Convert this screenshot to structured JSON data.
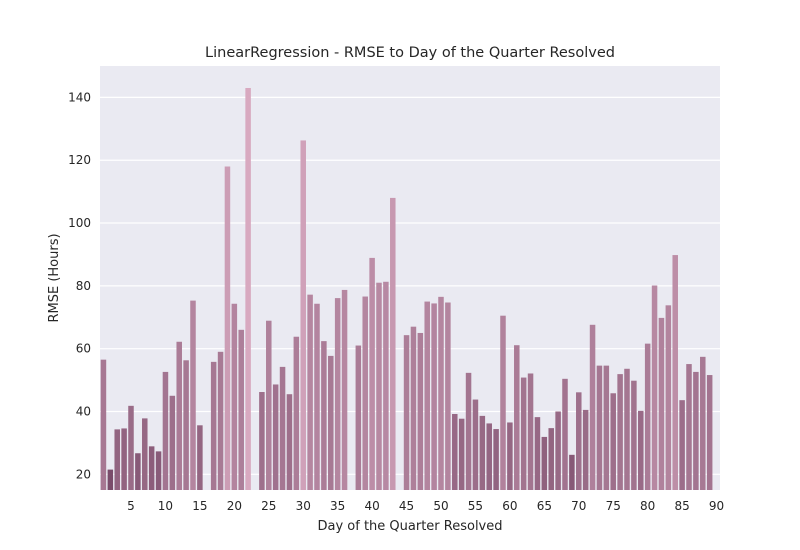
{
  "chart_data": {
    "type": "bar",
    "title": "LinearRegression - RMSE to Day of the Quarter Resolved",
    "xlabel": "Day of the Quarter Resolved",
    "ylabel": "RMSE (Hours)",
    "ylim": [
      15,
      150
    ],
    "x_ticks": [
      5,
      10,
      15,
      20,
      25,
      30,
      35,
      40,
      45,
      50,
      55,
      60,
      65,
      70,
      75,
      80,
      85,
      90
    ],
    "y_ticks": [
      20,
      40,
      60,
      80,
      100,
      120,
      140
    ],
    "categories": [
      1,
      2,
      3,
      4,
      5,
      6,
      7,
      8,
      9,
      10,
      11,
      12,
      13,
      14,
      15,
      16,
      17,
      18,
      19,
      20,
      21,
      22,
      23,
      24,
      25,
      26,
      27,
      28,
      29,
      30,
      31,
      32,
      33,
      34,
      35,
      36,
      37,
      38,
      39,
      40,
      41,
      42,
      43,
      44,
      45,
      46,
      47,
      48,
      49,
      50,
      51,
      52,
      53,
      54,
      55,
      56,
      57,
      58,
      59,
      60,
      61,
      62,
      63,
      64,
      65,
      66,
      67,
      68,
      69,
      70,
      71,
      72,
      73,
      74,
      75,
      76,
      77,
      78,
      79,
      80,
      81,
      82,
      83,
      84,
      85,
      86,
      87,
      88,
      89,
      90
    ],
    "values": [
      56.5,
      21.5,
      34.3,
      34.6,
      41.8,
      26.7,
      37.8,
      28.9,
      27.3,
      52.6,
      45.0,
      62.2,
      56.3,
      75.3,
      35.6,
      null,
      55.8,
      59.0,
      118.0,
      74.3,
      66.0,
      143.0,
      null,
      46.2,
      68.9,
      48.6,
      54.2,
      45.5,
      63.8,
      126.3,
      77.2,
      74.3,
      62.4,
      57.7,
      76.1,
      78.7,
      null,
      61.0,
      76.6,
      88.9,
      81.0,
      81.3,
      108.0,
      null,
      64.3,
      67.0,
      65.0,
      75.0,
      74.4,
      76.5,
      74.7,
      39.2,
      37.7,
      52.3,
      43.8,
      38.6,
      36.2,
      34.4,
      70.5,
      36.5,
      61.1,
      50.8,
      52.1,
      38.2,
      31.9,
      34.7,
      40.0,
      50.4,
      26.2,
      46.1,
      40.5,
      67.6,
      54.6,
      54.6,
      45.8,
      51.9,
      53.6,
      49.8,
      40.2,
      61.6,
      80.1,
      69.8,
      73.8,
      89.8,
      43.6,
      55.1,
      52.6,
      57.4,
      51.6,
      null
    ],
    "colors": {
      "background": "#eaeaf2",
      "grid": "#ffffff",
      "bar_light": "#d8a9c0",
      "bar_dark": "#7a4c6b",
      "text": "#262626"
    }
  }
}
